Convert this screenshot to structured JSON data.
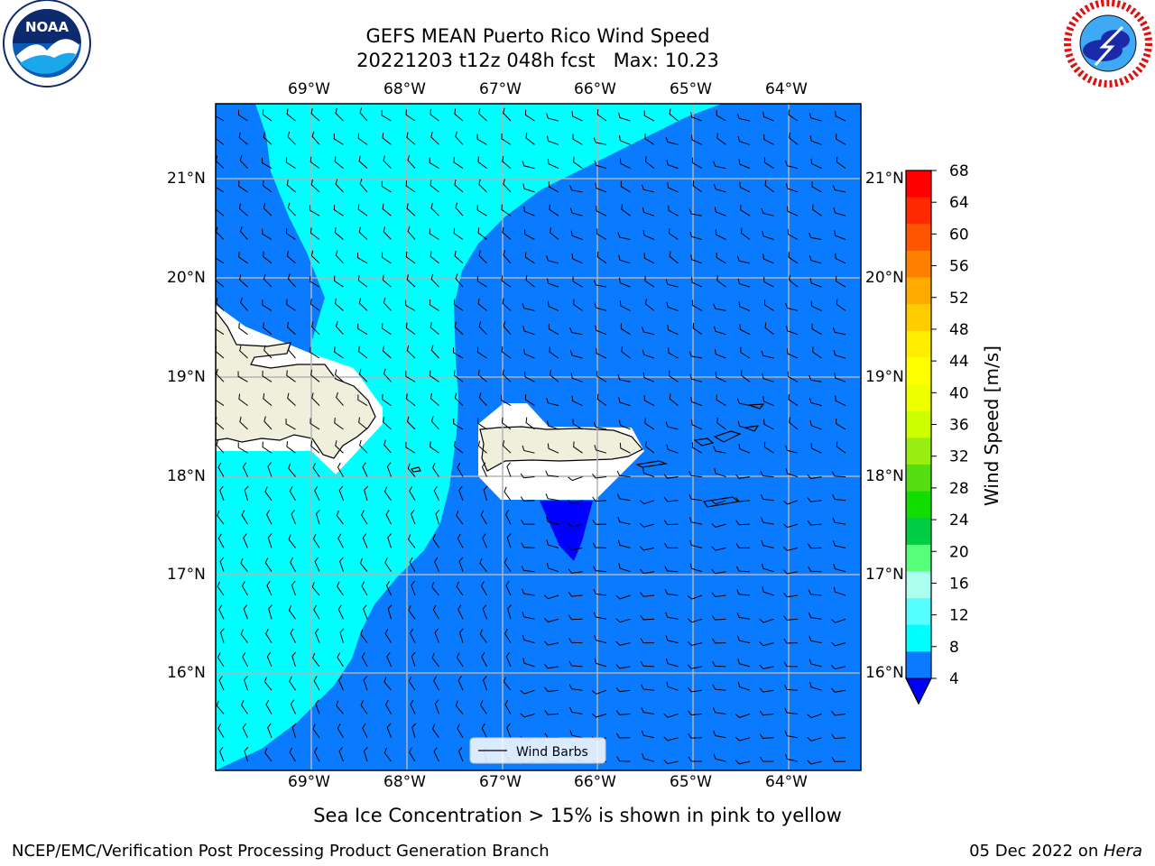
{
  "header": {
    "title": "GEFS MEAN Puerto Rico Wind Speed",
    "subtitle": "20221203 t12z 048h fcst   Max: 10.23"
  },
  "logos": {
    "left": {
      "name": "NOAA",
      "text": "NOAA",
      "ring_text": "NATIONAL OCEANIC AND ATMOSPHERIC ADMINISTRATION · U.S. DEPARTMENT OF COMMERCE"
    },
    "right": {
      "name": "National Weather Service",
      "ring_text": "NATIONAL WEATHER SERVICE"
    }
  },
  "map": {
    "lon_labels": [
      "69°W",
      "68°W",
      "67°W",
      "66°W",
      "65°W",
      "64°W"
    ],
    "lat_labels": [
      "21°N",
      "20°N",
      "19°N",
      "18°N",
      "17°N",
      "16°N"
    ],
    "legend_label": "Wind Barbs",
    "colors": {
      "land": "#efefdc",
      "wind_4_8": "#0a7bff",
      "wind_8_12": "#00ffff",
      "wind_below_4": "#0000ff"
    }
  },
  "colorbar": {
    "label": "Wind Speed [m/s]",
    "ticks": [
      "68",
      "64",
      "60",
      "56",
      "52",
      "48",
      "44",
      "40",
      "36",
      "32",
      "28",
      "24",
      "20",
      "16",
      "12",
      "8",
      "4"
    ],
    "colors": [
      "#ff0000",
      "#ff2a00",
      "#ff5500",
      "#ff8000",
      "#ffaa00",
      "#ffcc00",
      "#ffee00",
      "#ffff00",
      "#eeff00",
      "#ccff00",
      "#99ee11",
      "#55dd11",
      "#11dd00",
      "#00cc44",
      "#55ff77",
      "#aaffee",
      "#55ffff",
      "#00ffff",
      "#0a7bff"
    ],
    "extend_color": "#0000ff"
  },
  "footer": {
    "note": "Sea Ice Concentration > 15% is shown in pink to yellow",
    "left": "NCEP/EMC/Verification Post Processing Product Generation Branch",
    "right_date": "05 Dec 2022 on ",
    "right_machine": "Hera"
  }
}
